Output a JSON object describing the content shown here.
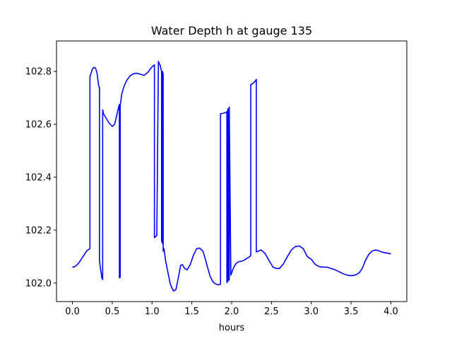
{
  "chart_data": {
    "type": "line",
    "title": "Water Depth h at gauge 135",
    "xlabel": "hours",
    "ylabel": "",
    "xlim": [
      -0.2,
      4.2
    ],
    "ylim": [
      101.93,
      102.915
    ],
    "xticks": [
      0.0,
      0.5,
      1.0,
      1.5,
      2.0,
      2.5,
      3.0,
      3.5,
      4.0
    ],
    "xtick_labels": [
      "0.0",
      "0.5",
      "1.0",
      "1.5",
      "2.0",
      "2.5",
      "3.0",
      "3.5",
      "4.0"
    ],
    "yticks": [
      102.0,
      102.2,
      102.4,
      102.6,
      102.8
    ],
    "ytick_labels": [
      "102.0",
      "102.2",
      "102.4",
      "102.6",
      "102.8"
    ],
    "grid": false,
    "legend": "none",
    "series": [
      {
        "color": "#0000ff",
        "x": [
          0.0,
          0.03,
          0.07,
          0.1,
          0.14,
          0.18,
          0.22,
          0.22,
          0.25,
          0.27,
          0.29,
          0.31,
          0.33,
          0.34,
          0.34,
          0.35,
          0.37,
          0.38,
          0.38,
          0.39,
          0.42,
          0.46,
          0.5,
          0.53,
          0.55,
          0.57,
          0.58,
          0.59,
          0.59,
          0.6,
          0.6,
          0.62,
          0.65,
          0.68,
          0.72,
          0.76,
          0.8,
          0.85,
          0.9,
          0.95,
          0.98,
          1.01,
          1.03,
          1.03,
          1.06,
          1.06,
          1.08,
          1.09,
          1.1,
          1.12,
          1.12,
          1.13,
          1.13,
          1.14,
          1.14,
          1.15,
          1.17,
          1.2,
          1.23,
          1.27,
          1.3,
          1.33,
          1.36,
          1.38,
          1.41,
          1.44,
          1.48,
          1.52,
          1.56,
          1.6,
          1.64,
          1.67,
          1.7,
          1.73,
          1.76,
          1.79,
          1.83,
          1.86,
          1.86,
          1.9,
          1.93,
          1.94,
          1.94,
          1.95,
          1.95,
          1.96,
          1.96,
          1.97,
          1.97,
          1.99,
          2.02,
          2.05,
          2.08,
          2.12,
          2.16,
          2.2,
          2.23,
          2.24,
          2.24,
          2.27,
          2.3,
          2.31,
          2.31,
          2.33,
          2.37,
          2.42,
          2.47,
          2.52,
          2.56,
          2.6,
          2.65,
          2.7,
          2.75,
          2.8,
          2.85,
          2.9,
          2.95,
          3.0,
          3.05,
          3.1,
          3.15,
          3.2,
          3.25,
          3.3,
          3.35,
          3.4,
          3.45,
          3.5,
          3.55,
          3.6,
          3.64,
          3.68,
          3.72,
          3.76,
          3.8,
          3.84,
          3.88,
          3.92,
          3.96,
          4.0
        ],
        "y": [
          102.06,
          102.062,
          102.072,
          102.085,
          102.103,
          102.122,
          102.13,
          102.78,
          102.808,
          102.815,
          102.813,
          102.792,
          102.745,
          102.74,
          102.085,
          102.06,
          102.02,
          102.013,
          102.655,
          102.64,
          102.625,
          102.605,
          102.592,
          102.6,
          102.625,
          102.652,
          102.665,
          102.675,
          102.02,
          102.022,
          102.67,
          102.715,
          102.745,
          102.765,
          102.782,
          102.79,
          102.793,
          102.79,
          102.785,
          102.797,
          102.81,
          102.82,
          102.825,
          102.172,
          102.18,
          102.18,
          102.838,
          102.83,
          102.825,
          102.8,
          102.16,
          102.15,
          102.8,
          102.79,
          102.12,
          102.13,
          102.085,
          102.04,
          101.995,
          101.97,
          101.975,
          102.02,
          102.067,
          102.07,
          102.055,
          102.05,
          102.07,
          102.105,
          102.13,
          102.132,
          102.12,
          102.09,
          102.057,
          102.025,
          102.007,
          101.998,
          101.993,
          101.995,
          102.64,
          102.642,
          102.645,
          102.648,
          102.002,
          102.005,
          102.655,
          102.66,
          102.01,
          102.012,
          102.665,
          102.03,
          102.055,
          102.072,
          102.08,
          102.082,
          102.087,
          102.095,
          102.1,
          102.105,
          102.75,
          102.755,
          102.765,
          102.77,
          102.118,
          102.12,
          102.125,
          102.112,
          102.085,
          102.06,
          102.055,
          102.055,
          102.072,
          102.1,
          102.125,
          102.138,
          102.14,
          102.13,
          102.1,
          102.09,
          102.07,
          102.062,
          102.06,
          102.06,
          102.055,
          102.05,
          102.043,
          102.035,
          102.03,
          102.028,
          102.03,
          102.038,
          102.055,
          102.085,
          102.107,
          102.12,
          102.125,
          102.123,
          102.118,
          102.115,
          102.113,
          102.11
        ]
      }
    ]
  }
}
